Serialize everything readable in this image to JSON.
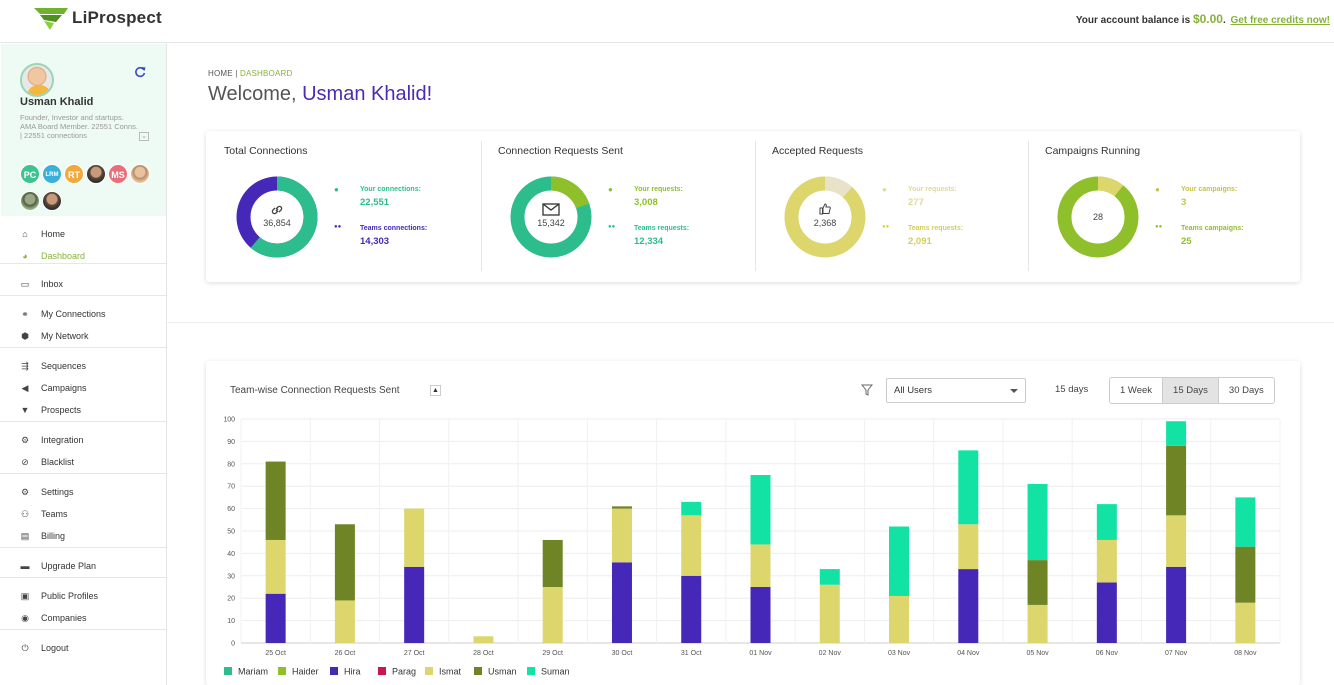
{
  "header": {
    "logo_text": "LiProspect",
    "balance_prefix": "Your account balance is",
    "balance_amount": "$0.00",
    "balance_suffix": ".",
    "free_credits_link": "Get free credits now!"
  },
  "profile": {
    "name": "Usman Khalid",
    "bio": "Founder, Investor and startups. AMA Board Member. 22551 Conns. | 22551 connections",
    "team_initials": [
      "PC",
      "LRM",
      "RT",
      "",
      "MS",
      "",
      "",
      ""
    ],
    "team_colors": [
      "#3cc38f",
      "#3ab0d8",
      "#f0a93a",
      "",
      "#e86f7a",
      "",
      "",
      ""
    ]
  },
  "nav": [
    {
      "label": "Home",
      "icon": "home-icon",
      "glyph": "⌂"
    },
    {
      "label": "Dashboard",
      "icon": "dashboard-icon",
      "glyph": "◕",
      "active": true
    },
    {
      "label": "Inbox",
      "icon": "inbox-icon",
      "glyph": "▭"
    },
    {
      "label": "My Connections",
      "icon": "link-icon",
      "glyph": "⚭"
    },
    {
      "label": "My Network",
      "icon": "network-icon",
      "glyph": "⬢"
    },
    {
      "label": "Sequences",
      "icon": "sequences-icon",
      "glyph": "⇶"
    },
    {
      "label": "Campaigns",
      "icon": "megaphone-icon",
      "glyph": "◀"
    },
    {
      "label": "Prospects",
      "icon": "filter-icon",
      "glyph": "▼"
    },
    {
      "label": "Integration",
      "icon": "cog-icon",
      "glyph": "⚙"
    },
    {
      "label": "Blacklist",
      "icon": "ban-icon",
      "glyph": "⊘"
    },
    {
      "label": "Settings",
      "icon": "gear-icon",
      "glyph": "⚙"
    },
    {
      "label": "Teams",
      "icon": "teams-icon",
      "glyph": "⚇"
    },
    {
      "label": "Billing",
      "icon": "billing-icon",
      "glyph": "▤"
    },
    {
      "label": "Upgrade Plan",
      "icon": "card-icon",
      "glyph": "▬"
    },
    {
      "label": "Public Profiles",
      "icon": "id-card-icon",
      "glyph": "▣"
    },
    {
      "label": "Companies",
      "icon": "compass-icon",
      "glyph": "◉"
    },
    {
      "label": "Logout",
      "icon": "power-icon",
      "glyph": "⏻"
    }
  ],
  "breadcrumb": {
    "home": "HOME",
    "sep": "|",
    "current": "DASHBOARD"
  },
  "welcome": {
    "greeting": "Welcome,",
    "name": "Usman Khalid!"
  },
  "stats": [
    {
      "title": "Total Connections",
      "center": "36,854",
      "icon": "link-icon",
      "glyph": "🔗",
      "your_label": "Your connections:",
      "your_value": "22,551",
      "team_label": "Teams connections:",
      "team_value": "14,303",
      "colors": {
        "your": "#2dbd8c",
        "team": "#4628b8",
        "text_your": "#2dbd8c",
        "text_team": "#4628b8"
      },
      "fractions": [
        0.612,
        0.388
      ]
    },
    {
      "title": "Connection Requests Sent",
      "center": "15,342",
      "icon": "envelope-icon",
      "glyph": "✉",
      "your_label": "Your requests:",
      "your_value": "3,008",
      "team_label": "Teams requests:",
      "team_value": "12,334",
      "colors": {
        "your": "#8fbf2a",
        "team": "#2dbd8c",
        "text_your": "#8fbf2a",
        "text_team": "#2dbd8c"
      },
      "fractions": [
        0.196,
        0.804
      ]
    },
    {
      "title": "Accepted Requests",
      "center": "2,368",
      "icon": "thumbs-up-icon",
      "glyph": "👍",
      "your_label": "Your requests:",
      "your_value": "277",
      "team_label": "Teams requests:",
      "team_value": "2,091",
      "colors": {
        "your": "#e8e3c8",
        "team": "#dcd66c",
        "text_your": "#e0d99a",
        "text_team": "#d6cc5a"
      },
      "fractions": [
        0.117,
        0.883
      ]
    },
    {
      "title": "Campaigns Running",
      "center": "28",
      "icon": "",
      "glyph": "",
      "your_label": "Your campaigns:",
      "your_value": "3",
      "team_label": "Teams campaigns:",
      "team_value": "25",
      "colors": {
        "your": "#dcd66c",
        "team": "#8fbf2a",
        "text_your": "#c5c24a",
        "text_team": "#8fbf2a"
      },
      "fractions": [
        0.107,
        0.893
      ]
    }
  ],
  "chart_panel": {
    "title": "Team-wise Connection Requests Sent",
    "user_select": "All Users",
    "days_label": "15 days",
    "ranges": [
      "1 Week",
      "15 Days",
      "30 Days"
    ],
    "active_range": "15 Days"
  },
  "chart_data": {
    "type": "bar",
    "stacked": true,
    "categories": [
      "25 Oct",
      "26 Oct",
      "27 Oct",
      "28 Oct",
      "29 Oct",
      "30 Oct",
      "31 Oct",
      "01 Nov",
      "02 Nov",
      "03 Nov",
      "04 Nov",
      "05 Nov",
      "06 Nov",
      "07 Nov",
      "08 Nov"
    ],
    "ylim": [
      0,
      100
    ],
    "yticks": [
      0,
      10,
      20,
      30,
      40,
      50,
      60,
      70,
      80,
      90,
      100
    ],
    "grid": true,
    "legend_position": "bottom-left",
    "series": [
      {
        "name": "Mariam",
        "color": "#2dbd8c",
        "values": [
          0,
          0,
          0,
          0,
          0,
          0,
          0,
          0,
          0,
          0,
          0,
          0,
          0,
          0,
          0
        ]
      },
      {
        "name": "Haider",
        "color": "#8fbf2a",
        "values": [
          0,
          0,
          0,
          0,
          0,
          0,
          0,
          0,
          0,
          0,
          0,
          0,
          0,
          0,
          0
        ]
      },
      {
        "name": "Hira",
        "color": "#4628b8",
        "values": [
          22,
          0,
          34,
          0,
          0,
          36,
          30,
          25,
          0,
          0,
          33,
          0,
          27,
          34,
          0
        ]
      },
      {
        "name": "Parag",
        "color": "#c8174f",
        "values": [
          0,
          0,
          0,
          0,
          0,
          0,
          0,
          0,
          0,
          0,
          0,
          0,
          0,
          0,
          0
        ]
      },
      {
        "name": "Ismat",
        "color": "#dcd66c",
        "values": [
          24,
          19,
          26,
          3,
          25,
          24,
          27,
          19,
          26,
          21,
          20,
          17,
          19,
          23,
          18
        ]
      },
      {
        "name": "Usman",
        "color": "#6e8425",
        "values": [
          35,
          34,
          0,
          0,
          21,
          1,
          0,
          0,
          0,
          0,
          0,
          20,
          0,
          31,
          25
        ]
      },
      {
        "name": "Suman",
        "color": "#12e2a3",
        "values": [
          0,
          0,
          0,
          0,
          0,
          0,
          6,
          31,
          7,
          31,
          33,
          34,
          16,
          11,
          22
        ]
      }
    ]
  }
}
